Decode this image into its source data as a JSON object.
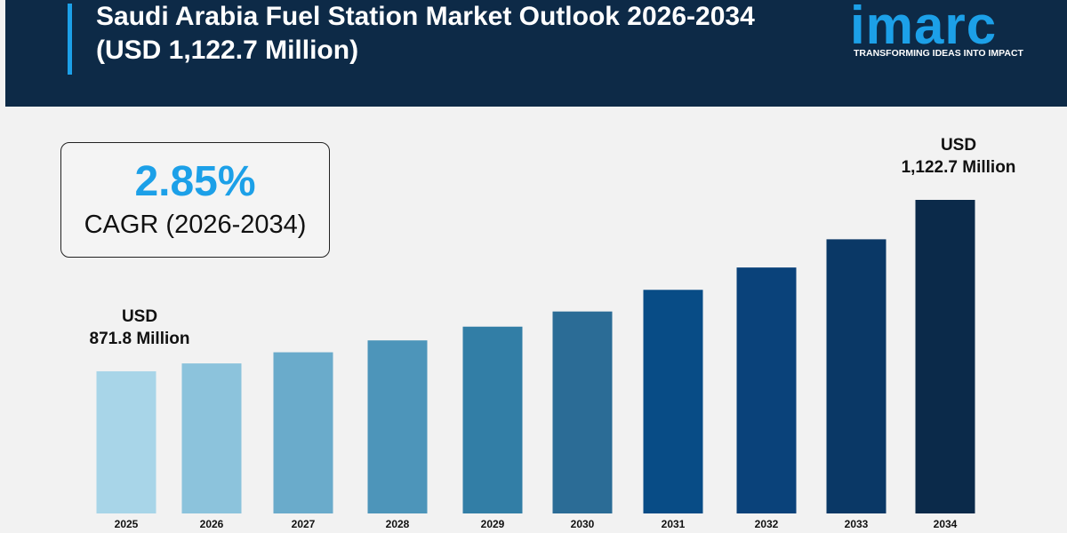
{
  "header": {
    "title": "Saudi Arabia Fuel Station Market Outlook 2026-2034 (USD 1,122.7 Million)",
    "brand": "imarc",
    "tagline": "TRANSFORMING IDEAS INTO IMPACT"
  },
  "cagr": {
    "value": "2.85%",
    "label": "CAGR (2026-2034)"
  },
  "chart_data": {
    "type": "bar",
    "categories": [
      "2025",
      "2026",
      "2027",
      "2028",
      "2029",
      "2030",
      "2031",
      "2032",
      "2033",
      "2034"
    ],
    "values": [
      871.8,
      883.3,
      899.6,
      917.0,
      937.1,
      959.3,
      991.0,
      1023.7,
      1065.0,
      1122.7
    ],
    "value_labels": [
      "USD\n871.8 Million",
      null,
      null,
      null,
      null,
      null,
      null,
      null,
      null,
      "USD\n1,122.7 Million"
    ],
    "colors": [
      "#a8d5e8",
      "#8cc3dc",
      "#6aabcb",
      "#4d95ba",
      "#327ea6",
      "#2b6c96",
      "#084c86",
      "#0a427a",
      "#0a3866",
      "#0b2a4a"
    ],
    "ylim": [
      783.3,
      1122.7
    ]
  }
}
